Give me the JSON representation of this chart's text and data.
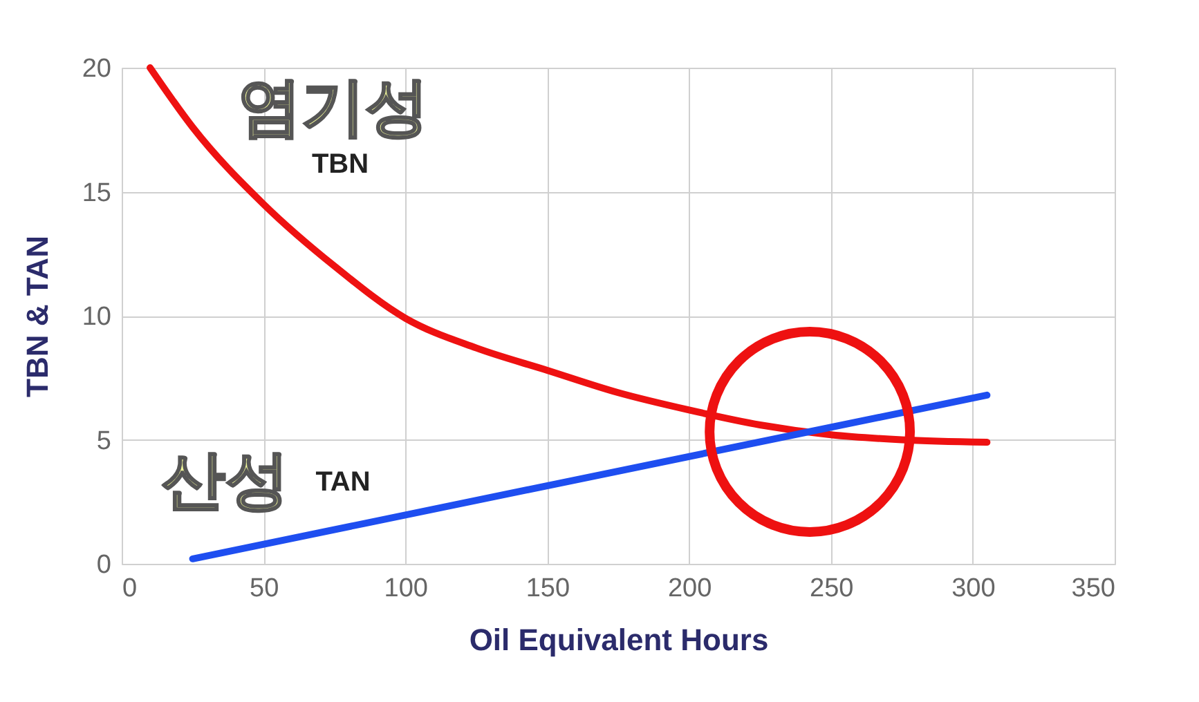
{
  "chart_data": {
    "type": "line",
    "xlabel": "Oil Equivalent Hours",
    "ylabel": "TBN & TAN",
    "xlim": [
      0,
      350
    ],
    "xticks": [
      0,
      50,
      100,
      150,
      200,
      250,
      300,
      350
    ],
    "ylim": [
      0,
      20
    ],
    "yticks": [
      0,
      5,
      10,
      15,
      20
    ],
    "grid": true,
    "marker": "none",
    "line_style": "solid",
    "series": [
      {
        "name": "TBN",
        "color": "#ee1111",
        "x": [
          10,
          25,
          50,
          75,
          100,
          125,
          150,
          175,
          200,
          225,
          250,
          275,
          305
        ],
        "values": [
          20,
          17.6,
          14.5,
          12.0,
          9.9,
          8.7,
          7.8,
          6.9,
          6.2,
          5.6,
          5.2,
          5.0,
          4.9
        ]
      },
      {
        "name": "TAN",
        "color": "#1e4ef0",
        "x": [
          25,
          305
        ],
        "values": [
          0.2,
          6.8
        ]
      }
    ],
    "annotations": [
      "염기성",
      "산성"
    ]
  }
}
